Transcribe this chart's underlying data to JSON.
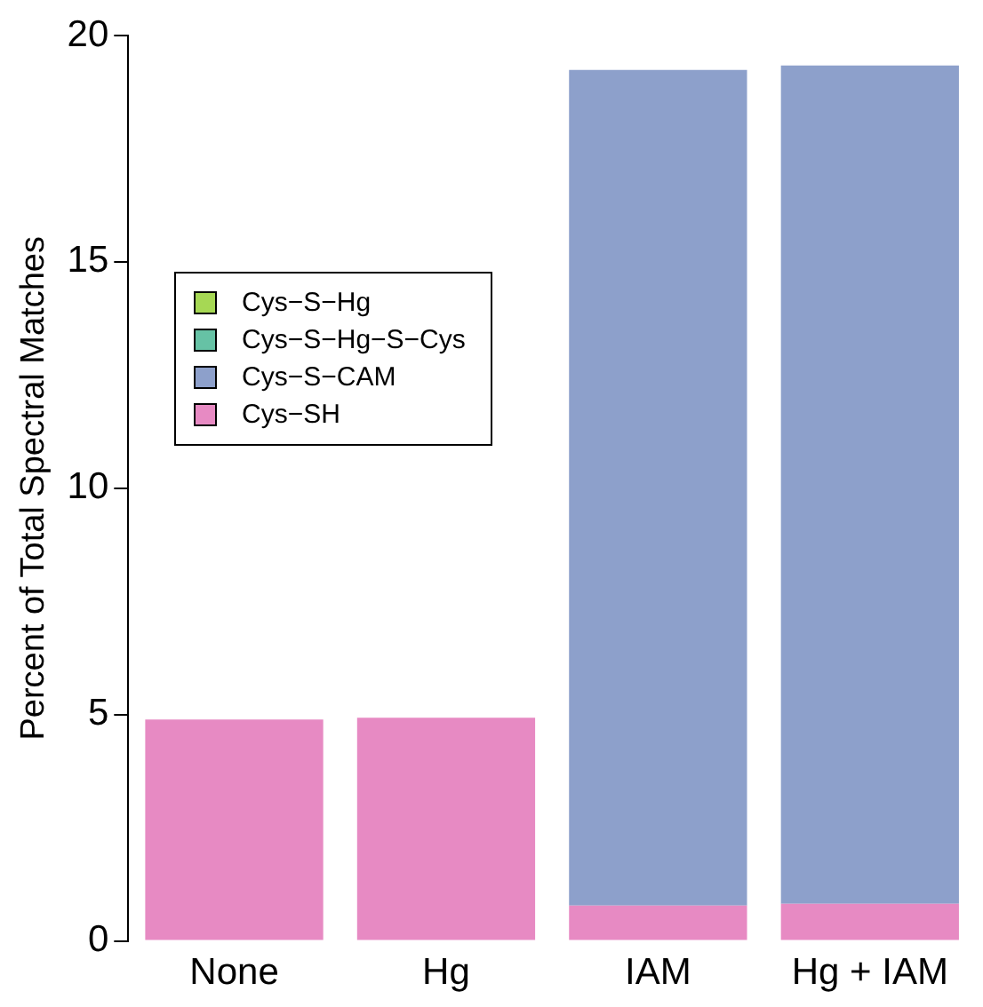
{
  "chart_data": {
    "type": "bar",
    "ylabel": "Percent of Total Spectral Matches",
    "categories": [
      "None",
      "Hg",
      "IAM",
      "Hg + IAM"
    ],
    "stacked": true,
    "ylim": [
      0,
      20
    ],
    "yticks": [
      0,
      5,
      10,
      15,
      20
    ],
    "grid": false,
    "legend": "left",
    "series": [
      {
        "name": "Cys−SH",
        "color": "#e78ac3",
        "values": [
          4.89,
          4.93,
          0.78,
          0.82
        ]
      },
      {
        "name": "Cys−S−CAM",
        "color": "#8da0cb",
        "values": [
          0,
          0,
          18.46,
          18.52
        ]
      },
      {
        "name": "Cys−S−Hg−S−Cys",
        "color": "#66c2a5",
        "values": [
          0,
          0,
          0,
          0
        ]
      },
      {
        "name": "Cys−S−Hg",
        "color": "#a6d854",
        "values": [
          0,
          0,
          0,
          0
        ]
      }
    ]
  }
}
